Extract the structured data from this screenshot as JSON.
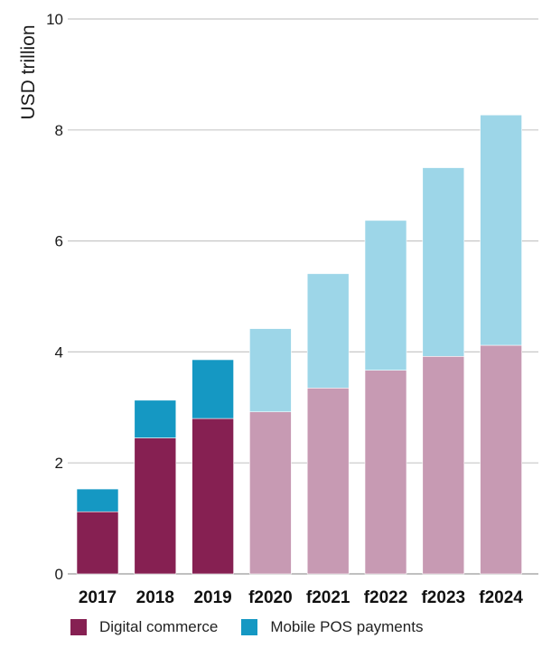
{
  "chart_data": {
    "type": "bar",
    "stacked": true,
    "categories": [
      "2017",
      "2018",
      "2019",
      "f2020",
      "f2021",
      "f2022",
      "f2023",
      "f2024"
    ],
    "forecast_categories": [
      "f2020",
      "f2021",
      "f2022",
      "f2023",
      "f2024"
    ],
    "series": [
      {
        "name": "Digital commerce",
        "values": [
          1.12,
          2.45,
          2.8,
          2.92,
          3.35,
          3.67,
          3.92,
          4.12
        ]
      },
      {
        "name": "Mobile POS payments",
        "values": [
          0.41,
          0.68,
          1.06,
          1.5,
          2.06,
          2.7,
          3.4,
          4.15
        ]
      }
    ],
    "ylabel": "USD trillion",
    "xlabel": "",
    "ylim": [
      0,
      10
    ],
    "yticks": [
      "0",
      "2",
      "4",
      "6",
      "8",
      "10"
    ],
    "grid": true,
    "legend_position": "bottom-left",
    "colors": {
      "Digital commerce": "#862052",
      "Mobile POS payments": "#1598c3",
      "Digital commerce forecast": "#c79ab3",
      "Mobile POS payments forecast": "#9dd6e8",
      "grid": "#c8c8c8"
    }
  }
}
